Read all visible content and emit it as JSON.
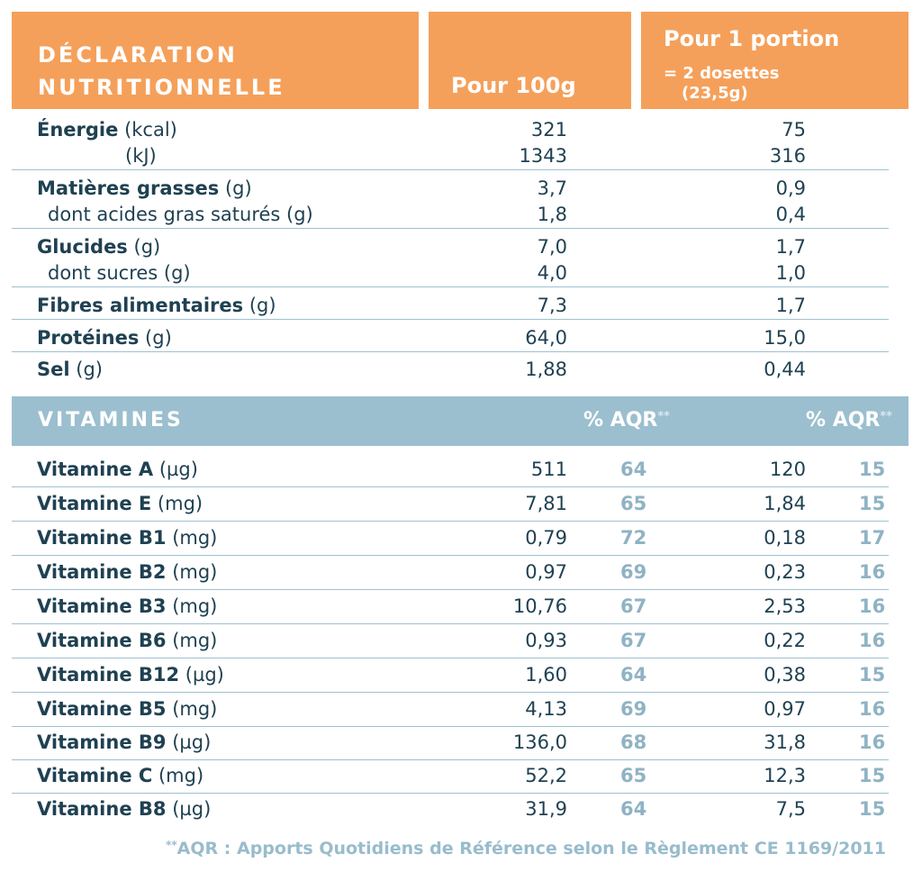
{
  "header": {
    "decl_line1": "DÉCLARATION",
    "decl_line2": "NUTRITIONNELLE",
    "per100": "Pour 100g",
    "portion_line1": "Pour 1 portion",
    "portion_line2": "= 2 dosettes",
    "portion_line3": "(23,5g)"
  },
  "nutrition": {
    "energie": {
      "name": "Énergie",
      "unit_kcal": "(kcal)",
      "unit_kj": "(kJ)",
      "kcal_100": "321",
      "kcal_portion": "75",
      "kj_100": "1343",
      "kj_portion": "316"
    },
    "graisses": {
      "name": "Matières grasses",
      "unit": "(g)",
      "v100": "3,7",
      "vportion": "0,9"
    },
    "satures": {
      "name": "dont acides gras saturés (g)",
      "v100": "1,8",
      "vportion": "0,4"
    },
    "glucides": {
      "name": "Glucides",
      "unit": "(g)",
      "v100": "7,0",
      "vportion": "1,7"
    },
    "sucres": {
      "name": "dont sucres (g)",
      "v100": "4,0",
      "vportion": "1,0"
    },
    "fibres": {
      "name": "Fibres alimentaires",
      "unit": "(g)",
      "v100": "7,3",
      "vportion": "1,7"
    },
    "proteines": {
      "name": "Protéines",
      "unit": "(g)",
      "v100": "64,0",
      "vportion": "15,0"
    },
    "sel": {
      "name": "Sel",
      "unit": "(g)",
      "v100": "1,88",
      "vportion": "0,44"
    }
  },
  "vitamins_header": {
    "title": "VITAMINES",
    "aqr_label": "% AQR",
    "aqr_marker": "**"
  },
  "vitamins": [
    {
      "name": "Vitamine A",
      "unit": "(µg)",
      "v100": "511",
      "aqr100": "64",
      "vportion": "120",
      "aqrportion": "15"
    },
    {
      "name": "Vitamine E",
      "unit": "(mg)",
      "v100": "7,81",
      "aqr100": "65",
      "vportion": "1,84",
      "aqrportion": "15"
    },
    {
      "name": "Vitamine B1",
      "unit": "(mg)",
      "v100": "0,79",
      "aqr100": "72",
      "vportion": "0,18",
      "aqrportion": "17"
    },
    {
      "name": "Vitamine B2",
      "unit": "(mg)",
      "v100": "0,97",
      "aqr100": "69",
      "vportion": "0,23",
      "aqrportion": "16"
    },
    {
      "name": "Vitamine B3",
      "unit": "(mg)",
      "v100": "10,76",
      "aqr100": "67",
      "vportion": "2,53",
      "aqrportion": "16"
    },
    {
      "name": "Vitamine B6",
      "unit": "(mg)",
      "v100": "0,93",
      "aqr100": "67",
      "vportion": "0,22",
      "aqrportion": "16"
    },
    {
      "name": "Vitamine B12",
      "unit": "(µg)",
      "v100": "1,60",
      "aqr100": "64",
      "vportion": "0,38",
      "aqrportion": "15"
    },
    {
      "name": "Vitamine B5",
      "unit": "(mg)",
      "v100": "4,13",
      "aqr100": "69",
      "vportion": "0,97",
      "aqrportion": "16"
    },
    {
      "name": "Vitamine B9",
      "unit": "(µg)",
      "v100": "136,0",
      "aqr100": "68",
      "vportion": "31,8",
      "aqrportion": "16"
    },
    {
      "name": "Vitamine C",
      "unit": "(mg)",
      "v100": "52,2",
      "aqr100": "65",
      "vportion": "12,3",
      "aqrportion": "15"
    },
    {
      "name": "Vitamine B8",
      "unit": "(µg)",
      "v100": "31,9",
      "aqr100": "64",
      "vportion": "7,5",
      "aqrportion": "15"
    }
  ],
  "footnote": {
    "marker": "**",
    "text": "AQR : Apports Quotidiens de Référence selon le Règlement CE 1169/2011"
  },
  "colors": {
    "header_orange": "#f5a05a",
    "vitamin_bar": "#9bbfcf",
    "text_dark": "#1f4152",
    "aqr_values": "#8fb3c4"
  }
}
